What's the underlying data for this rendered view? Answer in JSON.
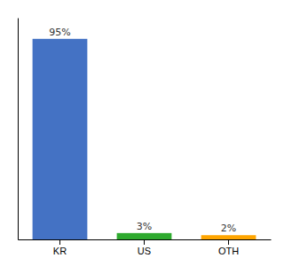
{
  "chart_data": {
    "type": "bar",
    "categories": [
      "KR",
      "US",
      "OTH"
    ],
    "values": [
      95,
      3,
      2
    ],
    "value_labels": [
      "95%",
      "3%",
      "2%"
    ],
    "colors": [
      "#4472C4",
      "#2EAA2E",
      "#FFA500"
    ],
    "ylim": [
      0,
      105
    ],
    "data_labels": true,
    "tick_labels": "x"
  }
}
